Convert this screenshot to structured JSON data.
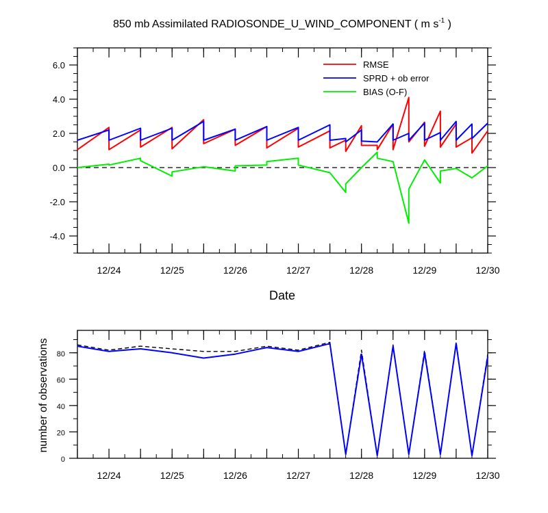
{
  "title": "850 mb Assimilated RADIOSONDE_U_WIND_COMPONENT ( m s",
  "title_sup": "-1",
  "title_end": " )",
  "chart_data": [
    {
      "type": "line",
      "x_ticks": [
        "12/24",
        "12/25",
        "12/26",
        "12/27",
        "12/28",
        "12/29",
        "12/30"
      ],
      "xlabel": "Date",
      "ylabel": "",
      "ylim": [
        -5.0,
        7.0
      ],
      "y_ticks": [
        "6.0",
        "4.0",
        "2.0",
        "0.0",
        "-2.0",
        "-4.0"
      ],
      "y_tick_values": [
        6,
        4,
        2,
        0,
        -2,
        -4
      ],
      "reference_line": 0,
      "colors": {
        "RMSE": "#ff0000",
        "SPRD": "#0000ff",
        "BIAS": "#00ee00"
      },
      "legend": [
        "RMSE",
        "SPRD + ob error",
        "BIAS (O-F)"
      ],
      "legend_position": "top-right",
      "series": [
        {
          "name": "RMSE",
          "points": [
            [
              23.5,
              1.05
            ],
            [
              24,
              2.35
            ],
            [
              24,
              1.05
            ],
            [
              24.5,
              2.2
            ],
            [
              24.5,
              1.2
            ],
            [
              25,
              2.35
            ],
            [
              25,
              1.1
            ],
            [
              25.5,
              2.8
            ],
            [
              25.5,
              1.4
            ],
            [
              26,
              2.25
            ],
            [
              26,
              1.3
            ],
            [
              26.5,
              2.4
            ],
            [
              26.5,
              1.15
            ],
            [
              27,
              2.3
            ],
            [
              27,
              1.2
            ],
            [
              27.5,
              2.15
            ],
            [
              27.5,
              1.15
            ],
            [
              27.75,
              1.6
            ],
            [
              27.75,
              0.95
            ],
            [
              28,
              2.45
            ],
            [
              28,
              1.3
            ],
            [
              28.25,
              1.3
            ],
            [
              28.25,
              1.05
            ],
            [
              28.5,
              2.55
            ],
            [
              28.5,
              1.05
            ],
            [
              28.75,
              4.1
            ],
            [
              28.75,
              1.5
            ],
            [
              29,
              2.65
            ],
            [
              29,
              1.25
            ],
            [
              29.25,
              3.3
            ],
            [
              29.25,
              1.2
            ],
            [
              29.5,
              2.55
            ],
            [
              29.5,
              1.2
            ],
            [
              29.75,
              1.75
            ],
            [
              29.75,
              0.85
            ],
            [
              30,
              2.15
            ]
          ]
        },
        {
          "name": "SPRD + ob error",
          "points": [
            [
              23.5,
              1.6
            ],
            [
              24,
              2.2
            ],
            [
              24,
              1.6
            ],
            [
              24.5,
              2.3
            ],
            [
              24.5,
              1.6
            ],
            [
              25,
              2.3
            ],
            [
              25,
              1.6
            ],
            [
              25.5,
              2.7
            ],
            [
              25.5,
              1.6
            ],
            [
              26,
              2.25
            ],
            [
              26,
              1.6
            ],
            [
              26.5,
              2.4
            ],
            [
              26.5,
              1.6
            ],
            [
              27,
              2.35
            ],
            [
              27,
              1.6
            ],
            [
              27.5,
              2.5
            ],
            [
              27.5,
              1.6
            ],
            [
              27.75,
              1.7
            ],
            [
              27.75,
              1.5
            ],
            [
              28,
              2.2
            ],
            [
              28,
              1.55
            ],
            [
              28.25,
              1.5
            ],
            [
              28.5,
              2.55
            ],
            [
              28.5,
              1.6
            ],
            [
              28.75,
              2.0
            ],
            [
              28.75,
              1.6
            ],
            [
              29,
              2.6
            ],
            [
              29,
              1.6
            ],
            [
              29.25,
              2.05
            ],
            [
              29.25,
              1.6
            ],
            [
              29.5,
              2.7
            ],
            [
              29.5,
              1.6
            ],
            [
              29.75,
              2.55
            ],
            [
              29.75,
              1.7
            ],
            [
              30,
              2.6
            ]
          ]
        },
        {
          "name": "BIAS (O-F)",
          "points": [
            [
              23.5,
              0.0
            ],
            [
              24,
              0.2
            ],
            [
              24,
              0.15
            ],
            [
              24.5,
              0.55
            ],
            [
              24.5,
              0.4
            ],
            [
              25,
              -0.5
            ],
            [
              25,
              -0.25
            ],
            [
              25.5,
              0.05
            ],
            [
              26,
              -0.2
            ],
            [
              26,
              0.1
            ],
            [
              26.5,
              0.15
            ],
            [
              26.5,
              0.35
            ],
            [
              27,
              0.55
            ],
            [
              27,
              0.15
            ],
            [
              27.5,
              -0.3
            ],
            [
              27.75,
              -1.45
            ],
            [
              27.75,
              -0.95
            ],
            [
              28,
              0.0
            ],
            [
              28.25,
              0.9
            ],
            [
              28.25,
              0.55
            ],
            [
              28.5,
              0.35
            ],
            [
              28.75,
              -3.25
            ],
            [
              28.75,
              -1.25
            ],
            [
              29,
              0.45
            ],
            [
              29.25,
              -0.9
            ],
            [
              29.25,
              -0.2
            ],
            [
              29.5,
              -0.05
            ],
            [
              29.75,
              -0.6
            ],
            [
              30,
              0.1
            ]
          ]
        }
      ]
    },
    {
      "type": "line",
      "x_ticks": [
        "12/24",
        "12/25",
        "12/26",
        "12/27",
        "12/28",
        "12/29",
        "12/30"
      ],
      "ylabel": "number of observations",
      "ylim": [
        0,
        97
      ],
      "y_ticks": [
        "80",
        "60",
        "40",
        "20",
        "0"
      ],
      "y_tick_values": [
        80,
        60,
        40,
        20,
        0
      ],
      "colors": {
        "total": "#000000",
        "used": "#0000ff"
      },
      "series": [
        {
          "style": "dashed",
          "points": [
            [
              23.5,
              86
            ],
            [
              24,
              82
            ],
            [
              24.5,
              85
            ],
            [
              25,
              83
            ],
            [
              25.5,
              81
            ],
            [
              26,
              81
            ],
            [
              26.5,
              85
            ],
            [
              27,
              82
            ],
            [
              27.5,
              88
            ],
            [
              27.75,
              3
            ],
            [
              28,
              82
            ],
            [
              28.25,
              2
            ],
            [
              28.5,
              86
            ],
            [
              28.75,
              3
            ],
            [
              29,
              82
            ],
            [
              29.25,
              3
            ],
            [
              29.5,
              88
            ],
            [
              29.75,
              2
            ],
            [
              30,
              79
            ]
          ]
        },
        {
          "style": "solid",
          "points": [
            [
              23.5,
              85
            ],
            [
              24,
              81
            ],
            [
              24.5,
              83
            ],
            [
              25,
              80
            ],
            [
              25.5,
              76
            ],
            [
              26,
              79
            ],
            [
              26.5,
              84
            ],
            [
              27,
              81
            ],
            [
              27.5,
              87
            ],
            [
              27.75,
              3
            ],
            [
              28,
              79
            ],
            [
              28.25,
              2
            ],
            [
              28.5,
              85
            ],
            [
              28.75,
              3
            ],
            [
              29,
              80
            ],
            [
              29.25,
              3
            ],
            [
              29.5,
              87
            ],
            [
              29.75,
              2
            ],
            [
              30,
              77
            ]
          ]
        }
      ]
    }
  ]
}
